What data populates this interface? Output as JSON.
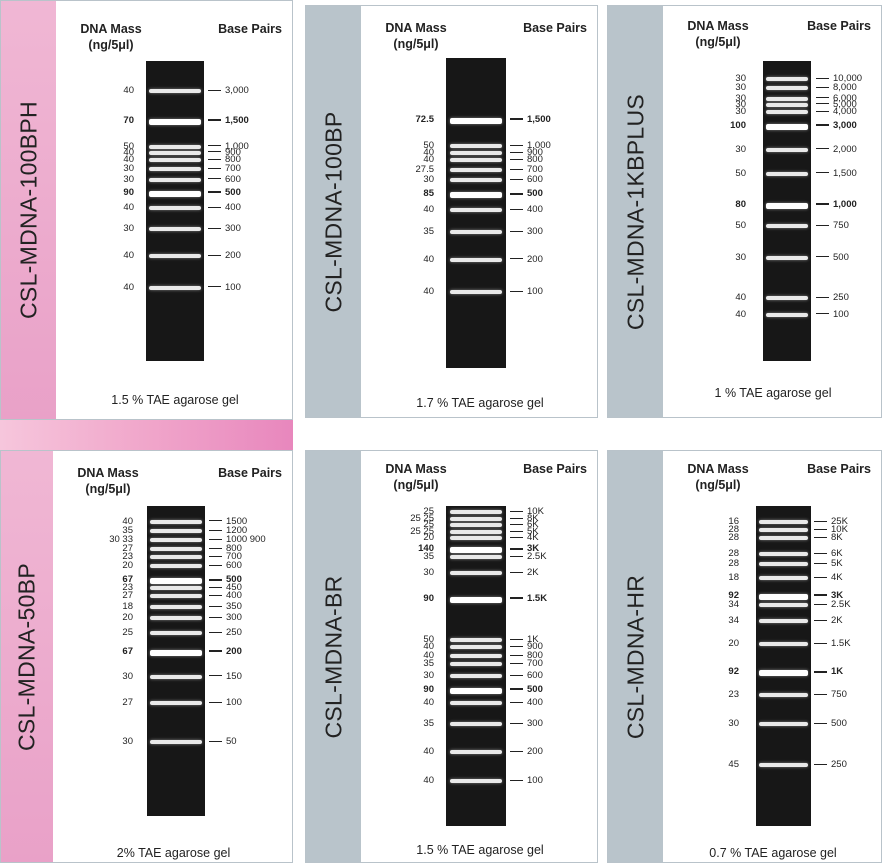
{
  "panels": [
    {
      "label": "CSL-MDNA-100BPH",
      "mass_header": "DNA Mass\n(ng/5μl)",
      "bp_header": "Base Pairs",
      "caption": "1.5 % TAE agarose gel",
      "bands": [
        {
          "mass": "40",
          "bp": "3,000",
          "y": 0.1,
          "bold": false
        },
        {
          "mass": "70",
          "bp": "1,500",
          "y": 0.2,
          "bold": true
        },
        {
          "mass": "50",
          "bp": "1,000",
          "y": 0.285,
          "bold": false
        },
        {
          "mass": "40",
          "bp": "900",
          "y": 0.305,
          "bold": false
        },
        {
          "mass": "40",
          "bp": "800",
          "y": 0.33,
          "bold": false
        },
        {
          "mass": "30",
          "bp": "700",
          "y": 0.36,
          "bold": false
        },
        {
          "mass": "30",
          "bp": "600",
          "y": 0.395,
          "bold": false
        },
        {
          "mass": "90",
          "bp": "500",
          "y": 0.44,
          "bold": true
        },
        {
          "mass": "40",
          "bp": "400",
          "y": 0.49,
          "bold": false
        },
        {
          "mass": "30",
          "bp": "300",
          "y": 0.56,
          "bold": false
        },
        {
          "mass": "40",
          "bp": "200",
          "y": 0.65,
          "bold": false
        },
        {
          "mass": "40",
          "bp": "100",
          "y": 0.755,
          "bold": false
        }
      ]
    },
    {
      "label": "CSL-MDNA-100BP",
      "mass_header": "DNA Mass\n(ng/5μl)",
      "bp_header": "Base Pairs",
      "caption": "1.7 % TAE agarose gel",
      "bands": [
        {
          "mass": "72.5",
          "bp": "1,500",
          "y": 0.2,
          "bold": true
        },
        {
          "mass": "50",
          "bp": "1,000",
          "y": 0.285,
          "bold": false
        },
        {
          "mass": "40",
          "bp": "900",
          "y": 0.305,
          "bold": false
        },
        {
          "mass": "40",
          "bp": "800",
          "y": 0.33,
          "bold": false
        },
        {
          "mass": "27.5",
          "bp": "700",
          "y": 0.36,
          "bold": false
        },
        {
          "mass": "30",
          "bp": "600",
          "y": 0.395,
          "bold": false
        },
        {
          "mass": "85",
          "bp": "500",
          "y": 0.44,
          "bold": true
        },
        {
          "mass": "40",
          "bp": "400",
          "y": 0.49,
          "bold": false
        },
        {
          "mass": "35",
          "bp": "300",
          "y": 0.56,
          "bold": false
        },
        {
          "mass": "40",
          "bp": "200",
          "y": 0.65,
          "bold": false
        },
        {
          "mass": "40",
          "bp": "100",
          "y": 0.755,
          "bold": false
        }
      ]
    },
    {
      "label": "CSL-MDNA-1KBPLUS",
      "mass_header": "DNA Mass\n(ng/5μl)",
      "bp_header": "Base Pairs",
      "caption": "1 % TAE agarose gel",
      "bands": [
        {
          "mass": "30",
          "bp": "10,000",
          "y": 0.06,
          "bold": false
        },
        {
          "mass": "30",
          "bp": "8,000",
          "y": 0.09,
          "bold": false
        },
        {
          "mass": "30",
          "bp": "6,000",
          "y": 0.125,
          "bold": false
        },
        {
          "mass": "30",
          "bp": "5,000",
          "y": 0.145,
          "bold": false
        },
        {
          "mass": "30",
          "bp": "4,000",
          "y": 0.17,
          "bold": false
        },
        {
          "mass": "100",
          "bp": "3,000",
          "y": 0.215,
          "bold": true
        },
        {
          "mass": "30",
          "bp": "2,000",
          "y": 0.295,
          "bold": false
        },
        {
          "mass": "50",
          "bp": "1,500",
          "y": 0.375,
          "bold": false
        },
        {
          "mass": "80",
          "bp": "1,000",
          "y": 0.48,
          "bold": true
        },
        {
          "mass": "50",
          "bp": "750",
          "y": 0.55,
          "bold": false
        },
        {
          "mass": "30",
          "bp": "500",
          "y": 0.655,
          "bold": false
        },
        {
          "mass": "40",
          "bp": "250",
          "y": 0.79,
          "bold": false
        },
        {
          "mass": "40",
          "bp": "100",
          "y": 0.845,
          "bold": false
        }
      ]
    },
    {
      "label": "CSL-MDNA-50BP",
      "mass_header": "DNA Mass\n(ng/5μl)",
      "bp_header": "Base Pairs",
      "caption": "2% TAE agarose gel",
      "bands": [
        {
          "mass": "40",
          "bp": "1500",
          "y": 0.05,
          "bold": false
        },
        {
          "mass": "35",
          "bp": "1200",
          "y": 0.08,
          "bold": false
        },
        {
          "mass": "30 33",
          "bp": "1000 900",
          "y": 0.11,
          "bold": false
        },
        {
          "mass": "27",
          "bp": "800",
          "y": 0.14,
          "bold": false
        },
        {
          "mass": "23",
          "bp": "700",
          "y": 0.165,
          "bold": false
        },
        {
          "mass": "20",
          "bp": "600",
          "y": 0.195,
          "bold": false
        },
        {
          "mass": "67",
          "bp": "500",
          "y": 0.24,
          "bold": true
        },
        {
          "mass": "23",
          "bp": "450",
          "y": 0.265,
          "bold": false
        },
        {
          "mass": "27",
          "bp": "400",
          "y": 0.29,
          "bold": false
        },
        {
          "mass": "18",
          "bp": "350",
          "y": 0.325,
          "bold": false
        },
        {
          "mass": "20",
          "bp": "300",
          "y": 0.36,
          "bold": false
        },
        {
          "mass": "25",
          "bp": "250",
          "y": 0.41,
          "bold": false
        },
        {
          "mass": "67",
          "bp": "200",
          "y": 0.47,
          "bold": true
        },
        {
          "mass": "30",
          "bp": "150",
          "y": 0.55,
          "bold": false
        },
        {
          "mass": "27",
          "bp": "100",
          "y": 0.635,
          "bold": false
        },
        {
          "mass": "30",
          "bp": "50",
          "y": 0.76,
          "bold": false
        }
      ]
    },
    {
      "label": "CSL-MDNA-BR",
      "mass_header": "DNA Mass\n(ng/5μl)",
      "bp_header": "Base Pairs",
      "caption": "1.5 % TAE agarose gel",
      "bands": [
        {
          "mass": "25",
          "bp": "10K",
          "y": 0.02,
          "bold": false
        },
        {
          "mass": "25 25",
          "bp": "8K",
          "y": 0.04,
          "bold": false
        },
        {
          "mass": "25",
          "bp": "6K",
          "y": 0.06,
          "bold": false
        },
        {
          "mass": "25 25",
          "bp": "5K",
          "y": 0.08,
          "bold": false
        },
        {
          "mass": "20",
          "bp": "4K",
          "y": 0.1,
          "bold": false
        },
        {
          "mass": "140",
          "bp": "3K",
          "y": 0.135,
          "bold": true
        },
        {
          "mass": "35",
          "bp": "2.5K",
          "y": 0.16,
          "bold": false
        },
        {
          "mass": "30",
          "bp": "2K",
          "y": 0.21,
          "bold": false
        },
        {
          "mass": "90",
          "bp": "1.5K",
          "y": 0.29,
          "bold": true
        },
        {
          "mass": "50",
          "bp": "1K",
          "y": 0.42,
          "bold": false
        },
        {
          "mass": "40",
          "bp": "900",
          "y": 0.44,
          "bold": false
        },
        {
          "mass": "40",
          "bp": "800",
          "y": 0.47,
          "bold": false
        },
        {
          "mass": "35",
          "bp": "700",
          "y": 0.495,
          "bold": false
        },
        {
          "mass": "30",
          "bp": "600",
          "y": 0.53,
          "bold": false
        },
        {
          "mass": "90",
          "bp": "500",
          "y": 0.575,
          "bold": true
        },
        {
          "mass": "40",
          "bp": "400",
          "y": 0.615,
          "bold": false
        },
        {
          "mass": "35",
          "bp": "300",
          "y": 0.68,
          "bold": false
        },
        {
          "mass": "40",
          "bp": "200",
          "y": 0.77,
          "bold": false
        },
        {
          "mass": "40",
          "bp": "100",
          "y": 0.86,
          "bold": false
        }
      ]
    },
    {
      "label": "CSL-MDNA-HR",
      "mass_header": "DNA Mass\n(ng/5μl)",
      "bp_header": "Base Pairs",
      "caption": "0.7 % TAE agarose gel",
      "bands": [
        {
          "mass": "16",
          "bp": "25K",
          "y": 0.05,
          "bold": false
        },
        {
          "mass": "28",
          "bp": "10K",
          "y": 0.075,
          "bold": false
        },
        {
          "mass": "28",
          "bp": "8K",
          "y": 0.1,
          "bold": false
        },
        {
          "mass": "28",
          "bp": "6K",
          "y": 0.15,
          "bold": false
        },
        {
          "mass": "28",
          "bp": "5K",
          "y": 0.18,
          "bold": false
        },
        {
          "mass": "18",
          "bp": "4K",
          "y": 0.225,
          "bold": false
        },
        {
          "mass": "92",
          "bp": "3K",
          "y": 0.28,
          "bold": true
        },
        {
          "mass": "34",
          "bp": "2.5K",
          "y": 0.31,
          "bold": false
        },
        {
          "mass": "34",
          "bp": "2K",
          "y": 0.36,
          "bold": false
        },
        {
          "mass": "20",
          "bp": "1.5K",
          "y": 0.43,
          "bold": false
        },
        {
          "mass": "92",
          "bp": "1K",
          "y": 0.52,
          "bold": true
        },
        {
          "mass": "23",
          "bp": "750",
          "y": 0.59,
          "bold": false
        },
        {
          "mass": "30",
          "bp": "500",
          "y": 0.68,
          "bold": false
        },
        {
          "mass": "45",
          "bp": "250",
          "y": 0.81,
          "bold": false
        }
      ]
    }
  ]
}
